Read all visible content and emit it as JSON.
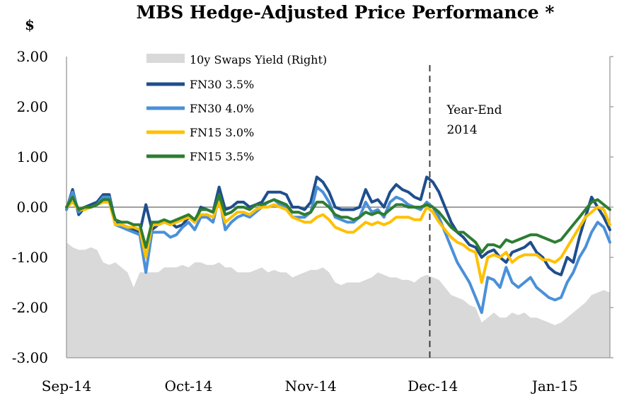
{
  "chart_data": {
    "type": "line",
    "title": "MBS Hedge-Adjusted Price Performance *",
    "ylabel": "$",
    "ylim": [
      -3.0,
      3.0
    ],
    "y_ticks": [
      "3.00",
      "2.00",
      "1.00",
      "0.00",
      "-1.00",
      "-2.00",
      "-3.00"
    ],
    "y_tick_values": [
      3,
      2,
      1,
      0,
      -1,
      -2,
      -3
    ],
    "x_ticks": [
      "Sep-14",
      "Oct-14",
      "Nov-14",
      "Dec-14",
      "Jan-15"
    ],
    "x_tick_positions": [
      0,
      20,
      40,
      60,
      80
    ],
    "x_count": 90,
    "grid": false,
    "legend_position": "top-left",
    "annotation": {
      "lines": [
        "Year-End",
        "2014"
      ],
      "x": 59.5
    },
    "area_series": {
      "name": "10y Swaps Yield (Right)",
      "color": "#d9d9d9",
      "values": [
        -0.7,
        -0.8,
        -0.85,
        -0.85,
        -0.8,
        -0.85,
        -1.1,
        -1.15,
        -1.1,
        -1.2,
        -1.3,
        -1.6,
        -1.3,
        -1.3,
        -1.3,
        -1.3,
        -1.2,
        -1.2,
        -1.2,
        -1.15,
        -1.2,
        -1.1,
        -1.1,
        -1.15,
        -1.15,
        -1.1,
        -1.2,
        -1.2,
        -1.3,
        -1.3,
        -1.3,
        -1.25,
        -1.2,
        -1.3,
        -1.25,
        -1.3,
        -1.3,
        -1.4,
        -1.35,
        -1.3,
        -1.25,
        -1.25,
        -1.2,
        -1.3,
        -1.5,
        -1.55,
        -1.5,
        -1.5,
        -1.5,
        -1.45,
        -1.4,
        -1.3,
        -1.35,
        -1.4,
        -1.4,
        -1.45,
        -1.45,
        -1.5,
        -1.4,
        -1.35,
        -1.4,
        -1.45,
        -1.6,
        -1.75,
        -1.8,
        -1.85,
        -1.95,
        -2.0,
        -2.3,
        -2.2,
        -2.1,
        -2.2,
        -2.2,
        -2.1,
        -2.15,
        -2.1,
        -2.2,
        -2.2,
        -2.25,
        -2.3,
        -2.35,
        -2.3,
        -2.2,
        -2.1,
        -2.0,
        -1.9,
        -1.75,
        -1.7,
        -1.65,
        -1.7
      ]
    },
    "series": [
      {
        "name": "FN30 3.5%",
        "color": "#1f4e8c",
        "values": [
          -0.05,
          0.35,
          -0.15,
          0.0,
          0.05,
          0.1,
          0.25,
          0.25,
          -0.3,
          -0.35,
          -0.4,
          -0.45,
          -0.5,
          0.05,
          -0.45,
          -0.35,
          -0.3,
          -0.3,
          -0.4,
          -0.35,
          -0.2,
          -0.3,
          0.0,
          -0.05,
          -0.1,
          0.4,
          -0.05,
          0.0,
          0.1,
          0.1,
          0.0,
          0.05,
          0.1,
          0.3,
          0.3,
          0.3,
          0.25,
          0.0,
          0.0,
          -0.05,
          0.1,
          0.6,
          0.5,
          0.3,
          0.0,
          -0.05,
          -0.05,
          -0.05,
          0.0,
          0.35,
          0.1,
          0.15,
          0.0,
          0.3,
          0.45,
          0.35,
          0.3,
          0.2,
          0.15,
          0.6,
          0.5,
          0.3,
          0.0,
          -0.3,
          -0.5,
          -0.6,
          -0.75,
          -0.8,
          -1.0,
          -0.9,
          -0.85,
          -1.0,
          -1.1,
          -0.9,
          -0.85,
          -0.8,
          -0.7,
          -0.9,
          -1.0,
          -1.2,
          -1.3,
          -1.35,
          -1.0,
          -1.1,
          -0.6,
          -0.2,
          0.2,
          0.0,
          -0.2,
          -0.45
        ]
      },
      {
        "name": "FN30 4.0%",
        "color": "#4a90d9",
        "values": [
          -0.05,
          0.3,
          -0.1,
          0.0,
          0.0,
          0.05,
          0.2,
          0.2,
          -0.35,
          -0.4,
          -0.45,
          -0.5,
          -0.55,
          -1.3,
          -0.5,
          -0.5,
          -0.5,
          -0.6,
          -0.55,
          -0.4,
          -0.3,
          -0.45,
          -0.2,
          -0.2,
          -0.3,
          0.2,
          -0.45,
          -0.3,
          -0.2,
          -0.15,
          -0.2,
          -0.1,
          0.0,
          0.1,
          0.15,
          0.05,
          0.0,
          -0.2,
          -0.2,
          -0.2,
          -0.1,
          0.4,
          0.3,
          0.1,
          -0.2,
          -0.25,
          -0.3,
          -0.3,
          -0.2,
          0.1,
          -0.1,
          -0.05,
          -0.2,
          0.1,
          0.2,
          0.15,
          0.05,
          0.0,
          -0.05,
          0.1,
          0.0,
          -0.2,
          -0.5,
          -0.8,
          -1.1,
          -1.3,
          -1.5,
          -1.8,
          -2.1,
          -1.4,
          -1.45,
          -1.6,
          -1.2,
          -1.5,
          -1.6,
          -1.5,
          -1.4,
          -1.6,
          -1.7,
          -1.8,
          -1.85,
          -1.8,
          -1.5,
          -1.3,
          -1.0,
          -0.8,
          -0.5,
          -0.3,
          -0.4,
          -0.7
        ]
      },
      {
        "name": "FN15 3.0%",
        "color": "#ffc000",
        "values": [
          0.0,
          0.1,
          -0.05,
          -0.05,
          0.0,
          0.05,
          0.1,
          0.1,
          -0.35,
          -0.35,
          -0.4,
          -0.4,
          -0.45,
          -1.0,
          -0.35,
          -0.35,
          -0.3,
          -0.35,
          -0.3,
          -0.25,
          -0.2,
          -0.3,
          -0.15,
          -0.15,
          -0.2,
          0.1,
          -0.3,
          -0.2,
          -0.1,
          -0.1,
          -0.15,
          -0.05,
          0.0,
          0.0,
          0.05,
          0.0,
          -0.05,
          -0.2,
          -0.25,
          -0.3,
          -0.3,
          -0.2,
          -0.15,
          -0.25,
          -0.4,
          -0.45,
          -0.5,
          -0.5,
          -0.4,
          -0.3,
          -0.35,
          -0.3,
          -0.35,
          -0.3,
          -0.2,
          -0.2,
          -0.2,
          -0.25,
          -0.25,
          0.0,
          -0.1,
          -0.3,
          -0.45,
          -0.6,
          -0.7,
          -0.75,
          -0.85,
          -0.9,
          -1.5,
          -1.0,
          -0.95,
          -1.0,
          -0.9,
          -1.1,
          -1.0,
          -0.95,
          -0.95,
          -0.95,
          -1.05,
          -1.05,
          -1.1,
          -1.0,
          -0.8,
          -0.6,
          -0.4,
          -0.2,
          -0.1,
          0.0,
          -0.05,
          -0.35
        ]
      },
      {
        "name": "FN15 3.5%",
        "color": "#2e7d32",
        "values": [
          0.0,
          0.2,
          -0.05,
          0.0,
          0.0,
          0.05,
          0.15,
          0.15,
          -0.25,
          -0.3,
          -0.3,
          -0.35,
          -0.35,
          -0.8,
          -0.3,
          -0.3,
          -0.25,
          -0.3,
          -0.25,
          -0.2,
          -0.15,
          -0.25,
          -0.05,
          -0.05,
          -0.1,
          0.25,
          -0.15,
          -0.1,
          0.0,
          0.0,
          -0.05,
          0.05,
          0.05,
          0.1,
          0.15,
          0.1,
          0.05,
          -0.1,
          -0.1,
          -0.15,
          -0.1,
          0.1,
          0.1,
          0.0,
          -0.15,
          -0.2,
          -0.2,
          -0.25,
          -0.2,
          -0.1,
          -0.15,
          -0.1,
          -0.15,
          -0.05,
          0.05,
          0.05,
          0.0,
          0.0,
          0.0,
          0.05,
          0.0,
          -0.1,
          -0.25,
          -0.4,
          -0.5,
          -0.5,
          -0.6,
          -0.7,
          -0.9,
          -0.75,
          -0.75,
          -0.8,
          -0.65,
          -0.7,
          -0.65,
          -0.6,
          -0.55,
          -0.55,
          -0.6,
          -0.65,
          -0.7,
          -0.65,
          -0.5,
          -0.35,
          -0.2,
          -0.05,
          0.1,
          0.15,
          0.05,
          -0.05
        ]
      }
    ]
  }
}
